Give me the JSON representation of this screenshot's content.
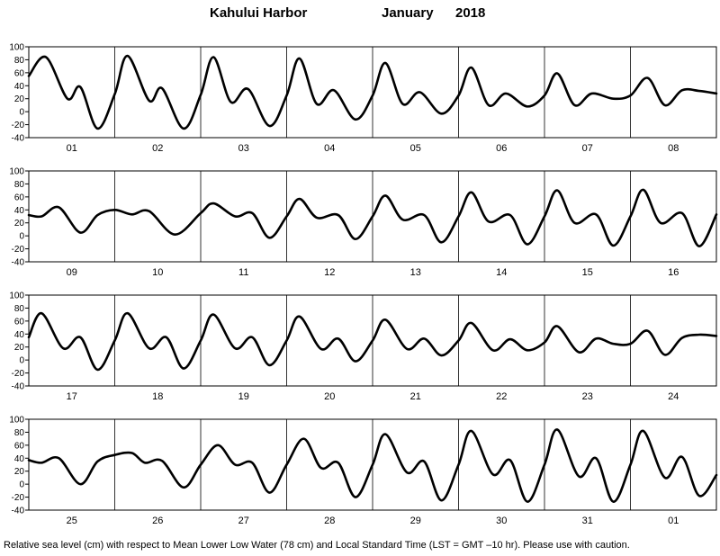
{
  "title": {
    "station": "Kahului Harbor",
    "month": "January",
    "year": "2018"
  },
  "caption": "Relative sea level (cm) with respect to Mean Lower Low Water (78 cm) and Local Standard Time (LST = GMT –10 hr). Please use with caution.",
  "colors": {
    "curve": "#000000",
    "frame": "#000000",
    "background": "#ffffff"
  },
  "chart_data": [
    {
      "type": "line",
      "y_ticks": [
        100,
        80,
        60,
        40,
        20,
        0,
        -20,
        -40
      ],
      "ylim": [
        -40,
        100
      ],
      "grid": "vertical day dividers",
      "x_tick_labels": [
        "01",
        "02",
        "03",
        "04",
        "05",
        "06",
        "07",
        "08"
      ],
      "x_unit": "day of month (each label centred on its day)",
      "series": [
        {
          "x": [
            0.0,
            0.2,
            0.45,
            0.6,
            0.8,
            1.0,
            1.15,
            1.4,
            1.55,
            1.8,
            2.0,
            2.15,
            2.35,
            2.55,
            2.8,
            3.0,
            3.15,
            3.35,
            3.55,
            3.8,
            4.0,
            4.15,
            4.35,
            4.55,
            4.8,
            5.0,
            5.15,
            5.35,
            5.55,
            5.8,
            6.0,
            6.15,
            6.35,
            6.55,
            6.8,
            7.0,
            7.2,
            7.4,
            7.6,
            7.8,
            8.0
          ],
          "y": [
            55,
            84,
            20,
            38,
            -26,
            27,
            86,
            17,
            36,
            -26,
            26,
            84,
            15,
            35,
            -22,
            25,
            82,
            12,
            33,
            -12,
            25,
            75,
            12,
            30,
            -3,
            25,
            68,
            10,
            28,
            8,
            25,
            59,
            10,
            28,
            20,
            25,
            52,
            10,
            33,
            32,
            28
          ]
        }
      ]
    },
    {
      "type": "line",
      "y_ticks": [
        100,
        80,
        60,
        40,
        20,
        0,
        -20,
        -40
      ],
      "ylim": [
        -40,
        100
      ],
      "grid": "vertical day dividers",
      "x_tick_labels": [
        "09",
        "10",
        "11",
        "12",
        "13",
        "14",
        "15",
        "16"
      ],
      "x_unit": "day of month (each label centred on its day)",
      "series": [
        {
          "x": [
            0.0,
            0.15,
            0.35,
            0.6,
            0.8,
            1.0,
            1.2,
            1.4,
            1.7,
            2.0,
            2.15,
            2.4,
            2.6,
            2.8,
            3.0,
            3.15,
            3.35,
            3.6,
            3.8,
            4.0,
            4.15,
            4.35,
            4.6,
            4.8,
            5.0,
            5.15,
            5.35,
            5.6,
            5.8,
            6.0,
            6.15,
            6.35,
            6.6,
            6.8,
            7.0,
            7.15,
            7.35,
            7.6,
            7.8,
            8.0
          ],
          "y": [
            32,
            30,
            44,
            5,
            32,
            40,
            33,
            38,
            2,
            35,
            50,
            30,
            35,
            -3,
            30,
            57,
            28,
            32,
            -5,
            30,
            62,
            25,
            32,
            -10,
            30,
            67,
            22,
            32,
            -13,
            30,
            70,
            20,
            33,
            -15,
            30,
            71,
            20,
            35,
            -16,
            33
          ]
        }
      ]
    },
    {
      "type": "line",
      "y_ticks": [
        100,
        80,
        60,
        40,
        20,
        0,
        -20,
        -40
      ],
      "ylim": [
        -40,
        100
      ],
      "grid": "vertical day dividers",
      "x_tick_labels": [
        "17",
        "18",
        "19",
        "20",
        "21",
        "22",
        "23",
        "24"
      ],
      "x_unit": "day of month (each label centred on its day)",
      "series": [
        {
          "x": [
            0.0,
            0.15,
            0.4,
            0.6,
            0.8,
            1.0,
            1.15,
            1.4,
            1.6,
            1.8,
            2.0,
            2.15,
            2.4,
            2.6,
            2.8,
            3.0,
            3.15,
            3.4,
            3.6,
            3.8,
            4.0,
            4.15,
            4.4,
            4.6,
            4.8,
            5.0,
            5.15,
            5.4,
            5.6,
            5.8,
            6.0,
            6.15,
            6.4,
            6.6,
            6.8,
            7.0,
            7.2,
            7.4,
            7.6,
            7.8,
            8.0
          ],
          "y": [
            35,
            72,
            18,
            35,
            -15,
            30,
            72,
            18,
            35,
            -13,
            30,
            70,
            18,
            35,
            -8,
            30,
            67,
            17,
            33,
            -2,
            30,
            62,
            17,
            33,
            7,
            30,
            57,
            15,
            32,
            15,
            27,
            52,
            12,
            33,
            25,
            25,
            45,
            8,
            34,
            39,
            37
          ]
        }
      ]
    },
    {
      "type": "line",
      "y_ticks": [
        100,
        80,
        60,
        40,
        20,
        0,
        -20,
        -40
      ],
      "ylim": [
        -40,
        100
      ],
      "grid": "vertical day dividers",
      "x_tick_labels": [
        "25",
        "26",
        "27",
        "28",
        "29",
        "30",
        "31",
        "01"
      ],
      "x_unit": "day of month (each label centred on its day)",
      "series": [
        {
          "x": [
            0.0,
            0.15,
            0.35,
            0.6,
            0.8,
            1.0,
            1.2,
            1.35,
            1.55,
            1.8,
            2.0,
            2.2,
            2.4,
            2.6,
            2.8,
            3.0,
            3.2,
            3.4,
            3.6,
            3.8,
            4.0,
            4.15,
            4.4,
            4.6,
            4.8,
            5.0,
            5.15,
            5.4,
            5.6,
            5.8,
            6.0,
            6.15,
            6.4,
            6.6,
            6.8,
            7.0,
            7.15,
            7.4,
            7.6,
            7.8,
            8.0
          ],
          "y": [
            37,
            33,
            40,
            0,
            35,
            45,
            48,
            33,
            36,
            -5,
            30,
            60,
            30,
            33,
            -13,
            30,
            70,
            25,
            33,
            -20,
            30,
            77,
            18,
            35,
            -25,
            30,
            82,
            15,
            37,
            -27,
            30,
            84,
            12,
            40,
            -27,
            30,
            82,
            10,
            42,
            -18,
            14
          ]
        }
      ]
    }
  ]
}
